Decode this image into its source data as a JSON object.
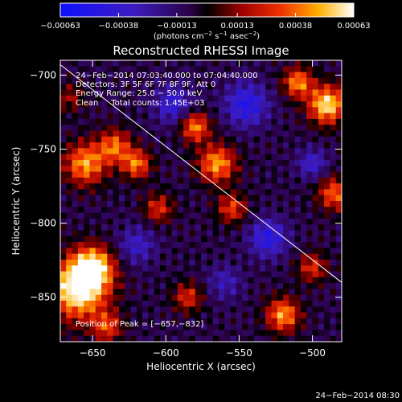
{
  "chart_data": {
    "type": "heatmap",
    "title": "Reconstructed RHESSI Image",
    "xlabel": "Heliocentric X (arcsec)",
    "ylabel": "Heliocentric Y (arcsec)",
    "xlim": [
      -672,
      -480
    ],
    "ylim": [
      -880,
      -690
    ],
    "x_ticks": [
      -650,
      -600,
      -550,
      -500
    ],
    "x_tick_labels": [
      "−650",
      "−600",
      "−550",
      "−500"
    ],
    "y_ticks": [
      -700,
      -750,
      -800,
      -850
    ],
    "y_tick_labels": [
      "−700",
      "−750",
      "−800",
      "−850"
    ],
    "colorbar": {
      "range": [
        -0.00063,
        0.00063
      ],
      "ticks": [
        -0.00063,
        -0.00038,
        -0.00013,
        0.00013,
        0.00038,
        0.00063
      ],
      "tick_labels": [
        "−0.00063",
        "−0.00038",
        "−0.00013",
        "0.00013",
        "0.00038",
        "0.00063"
      ],
      "units_prefix": "(photons cm",
      "units_sup1": "−2",
      "units_mid": " s",
      "units_sup2": "−1",
      "units_mid2": " asec",
      "units_sup3": "−2",
      "units_suffix": ")"
    },
    "info_lines": [
      "24−Feb−2014 07:03:40.000 to 07:04:40.000",
      "Detectors: 3F 5F 6F 7F 8F 9F, Att 0",
      "Energy Range: 25.0 − 50.0 keV",
      "Clean     Total counts: 1.45E+03"
    ],
    "peak_label": "Position of Peak = [−657,−832]",
    "peak": [
      -657,
      -832
    ],
    "limb_line": [
      [
        -672,
        -693
      ],
      [
        -480,
        -840
      ]
    ],
    "grid": false,
    "grid_cols": 48,
    "grid_rows": 48,
    "sources": [
      {
        "x": -660,
        "y": -845,
        "amp": 1.15,
        "w": 14
      },
      {
        "x": -650,
        "y": -830,
        "amp": 1.0,
        "w": 10
      },
      {
        "x": -655,
        "y": -760,
        "amp": 0.85,
        "w": 10
      },
      {
        "x": -635,
        "y": -748,
        "amp": 0.7,
        "w": 8
      },
      {
        "x": -620,
        "y": -760,
        "amp": 0.75,
        "w": 7
      },
      {
        "x": -605,
        "y": -790,
        "amp": 0.55,
        "w": 7
      },
      {
        "x": -580,
        "y": -735,
        "amp": 0.8,
        "w": 7
      },
      {
        "x": -565,
        "y": -760,
        "amp": 0.85,
        "w": 9
      },
      {
        "x": -555,
        "y": -790,
        "amp": 0.6,
        "w": 7
      },
      {
        "x": -510,
        "y": -705,
        "amp": 0.8,
        "w": 7
      },
      {
        "x": -490,
        "y": -720,
        "amp": 1.05,
        "w": 9
      },
      {
        "x": -485,
        "y": -780,
        "amp": 0.7,
        "w": 8
      },
      {
        "x": -500,
        "y": -830,
        "amp": 0.55,
        "w": 7
      },
      {
        "x": -520,
        "y": -862,
        "amp": 0.85,
        "w": 8
      },
      {
        "x": -585,
        "y": -850,
        "amp": 0.55,
        "w": 7
      },
      {
        "x": -640,
        "y": -870,
        "amp": 0.6,
        "w": 7
      },
      {
        "x": -665,
        "y": -715,
        "amp": 0.35,
        "w": 7
      },
      {
        "x": -545,
        "y": -720,
        "amp": -0.65,
        "w": 10
      },
      {
        "x": -595,
        "y": -720,
        "amp": -0.5,
        "w": 9
      },
      {
        "x": -530,
        "y": -810,
        "amp": -0.6,
        "w": 9
      },
      {
        "x": -620,
        "y": -815,
        "amp": -0.4,
        "w": 9
      },
      {
        "x": -500,
        "y": -760,
        "amp": -0.45,
        "w": 7
      },
      {
        "x": -560,
        "y": -840,
        "amp": -0.35,
        "w": 8
      }
    ],
    "background_level": -0.12
  },
  "footer_timestamp": "24−Feb−2014 08:30"
}
